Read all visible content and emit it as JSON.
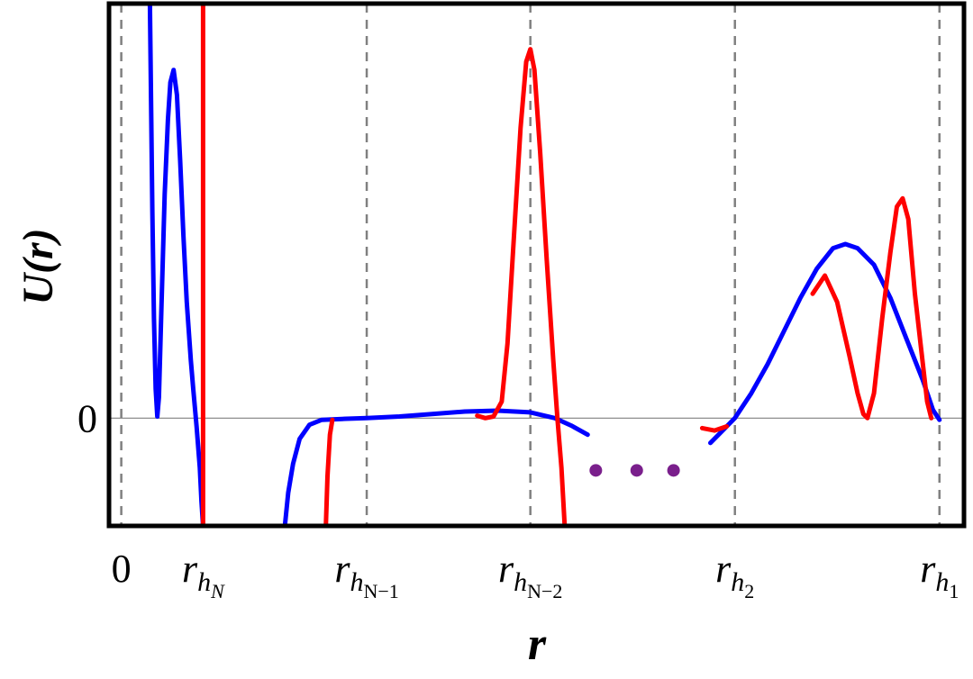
{
  "chart_data": {
    "type": "line",
    "title": "",
    "xlabel": "r",
    "ylabel": "U(r)",
    "y_zero_label": "0",
    "grid": false,
    "legend": "none",
    "x_ticks": [
      {
        "id": "zero",
        "x": 0,
        "label": "0",
        "sub": "",
        "subsub": ""
      },
      {
        "id": "rhN",
        "x": 1,
        "label": "r",
        "sub": "h",
        "subsub": "N"
      },
      {
        "id": "rhN1",
        "x": 3,
        "label": "r",
        "sub": "h",
        "subsub": "N−1"
      },
      {
        "id": "rhN2",
        "x": 5,
        "label": "r",
        "sub": "h",
        "subsub": "N−2"
      },
      {
        "id": "rh2",
        "x": 7.5,
        "label": "r",
        "sub": "h",
        "subsub": "2"
      },
      {
        "id": "rh1",
        "x": 10,
        "label": "r",
        "sub": "h",
        "subsub": "1"
      }
    ],
    "xlim": [
      -0.15,
      10.3
    ],
    "ylim": [
      -1.3,
      5.0
    ],
    "ellipsis": {
      "color": "#7a1f8c",
      "x": [
        5.8,
        6.3,
        6.75
      ],
      "y": -0.63
    },
    "series": [
      {
        "id": "blue",
        "color": "#0000ff",
        "segments": [
          [
            [
              0.35,
              5.0
            ],
            [
              0.38,
              2.5
            ],
            [
              0.4,
              1.2
            ],
            [
              0.42,
              0.35
            ],
            [
              0.44,
              0.02
            ],
            [
              0.46,
              0.25
            ],
            [
              0.49,
              1.3
            ],
            [
              0.53,
              2.7
            ],
            [
              0.57,
              3.6
            ],
            [
              0.6,
              4.05
            ],
            [
              0.64,
              4.2
            ],
            [
              0.68,
              3.9
            ],
            [
              0.72,
              3.1
            ],
            [
              0.76,
              2.2
            ],
            [
              0.8,
              1.4
            ],
            [
              0.85,
              0.7
            ],
            [
              0.88,
              0.35
            ],
            [
              0.92,
              -0.1
            ],
            [
              0.96,
              -0.6
            ],
            [
              0.98,
              -1.0
            ],
            [
              1.0,
              -1.3
            ]
          ],
          [
            [
              2.0,
              -1.3
            ],
            [
              2.04,
              -0.9
            ],
            [
              2.1,
              -0.55
            ],
            [
              2.18,
              -0.25
            ],
            [
              2.3,
              -0.08
            ],
            [
              2.45,
              -0.02
            ],
            [
              2.7,
              -0.01
            ],
            [
              3.0,
              0.0
            ],
            [
              3.4,
              0.02
            ],
            [
              3.8,
              0.05
            ],
            [
              4.2,
              0.08
            ],
            [
              4.6,
              0.09
            ],
            [
              5.0,
              0.07
            ],
            [
              5.3,
              0.0
            ],
            [
              5.5,
              -0.09
            ],
            [
              5.7,
              -0.2
            ]
          ],
          [
            [
              7.2,
              -0.3
            ],
            [
              7.35,
              -0.15
            ],
            [
              7.5,
              0.0
            ],
            [
              7.7,
              0.3
            ],
            [
              7.9,
              0.65
            ],
            [
              8.1,
              1.05
            ],
            [
              8.3,
              1.45
            ],
            [
              8.5,
              1.8
            ],
            [
              8.7,
              2.05
            ],
            [
              8.85,
              2.1
            ],
            [
              9.0,
              2.05
            ],
            [
              9.2,
              1.85
            ],
            [
              9.4,
              1.45
            ],
            [
              9.6,
              0.95
            ],
            [
              9.8,
              0.45
            ],
            [
              9.92,
              0.1
            ],
            [
              10.0,
              -0.02
            ]
          ]
        ]
      },
      {
        "id": "red",
        "color": "#ff0000",
        "segments": [
          [
            [
              1.0,
              5.0
            ],
            [
              1.0,
              -1.3
            ]
          ],
          [
            [
              2.5,
              -1.3
            ],
            [
              2.52,
              -0.7
            ],
            [
              2.55,
              -0.2
            ],
            [
              2.58,
              -0.02
            ]
          ],
          [
            [
              4.35,
              0.03
            ],
            [
              4.45,
              0.0
            ],
            [
              4.55,
              0.02
            ],
            [
              4.65,
              0.2
            ],
            [
              4.72,
              0.9
            ],
            [
              4.8,
              2.2
            ],
            [
              4.88,
              3.5
            ],
            [
              4.95,
              4.3
            ],
            [
              5.0,
              4.45
            ],
            [
              5.05,
              4.2
            ],
            [
              5.12,
              3.2
            ],
            [
              5.2,
              1.9
            ],
            [
              5.28,
              0.7
            ],
            [
              5.33,
              0.0
            ],
            [
              5.38,
              -0.6
            ],
            [
              5.42,
              -1.3
            ]
          ],
          [
            [
              7.1,
              -0.12
            ],
            [
              7.25,
              -0.15
            ],
            [
              7.4,
              -0.1
            ]
          ],
          [
            [
              8.45,
              1.5
            ],
            [
              8.6,
              1.72
            ],
            [
              8.75,
              1.4
            ],
            [
              8.9,
              0.75
            ],
            [
              9.0,
              0.3
            ],
            [
              9.07,
              0.05
            ],
            [
              9.12,
              0.0
            ],
            [
              9.2,
              0.3
            ],
            [
              9.3,
              1.2
            ],
            [
              9.4,
              2.0
            ],
            [
              9.48,
              2.55
            ],
            [
              9.55,
              2.65
            ],
            [
              9.62,
              2.4
            ],
            [
              9.7,
              1.5
            ],
            [
              9.78,
              0.8
            ],
            [
              9.85,
              0.2
            ],
            [
              9.9,
              0.0
            ]
          ]
        ]
      }
    ]
  }
}
